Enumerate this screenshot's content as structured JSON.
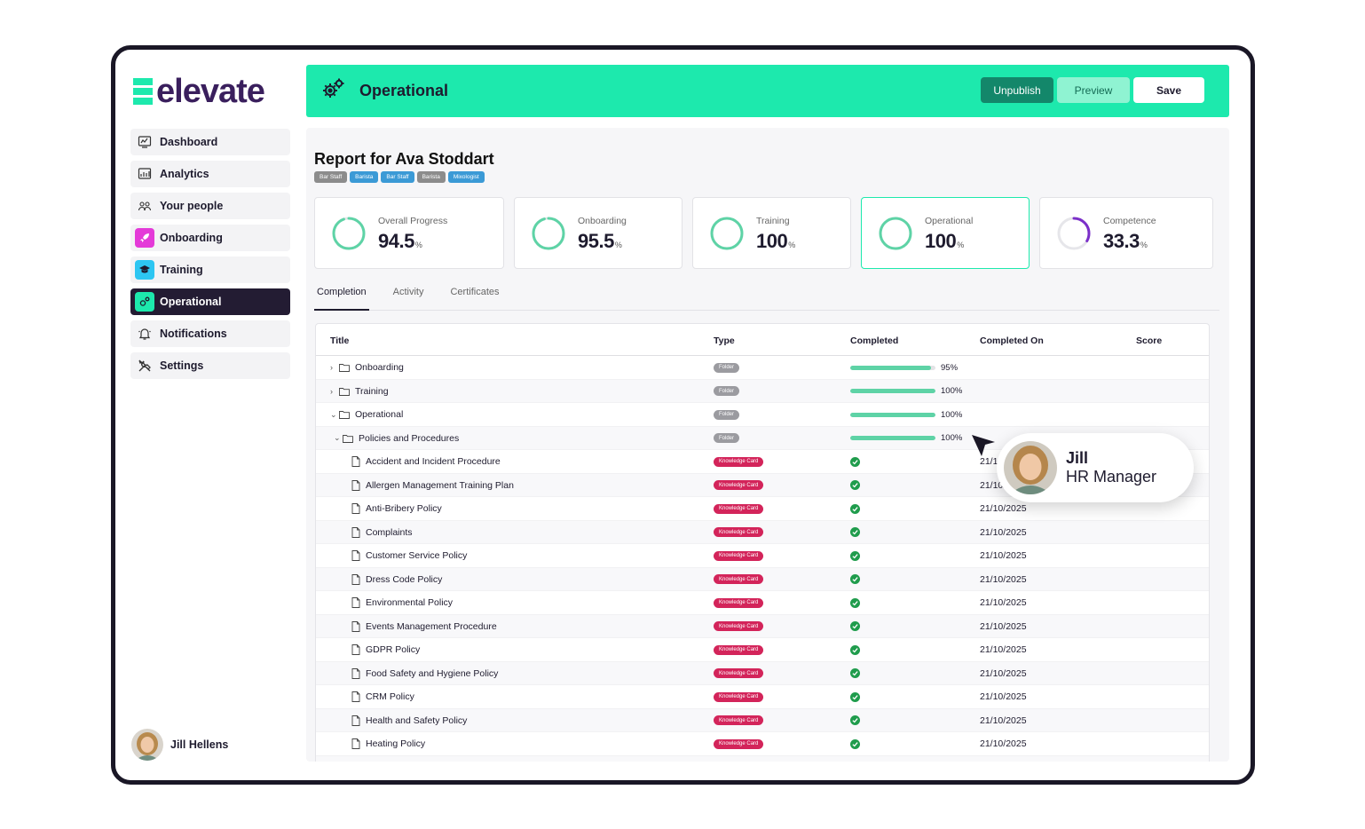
{
  "brand": {
    "logo_text": "elevate",
    "accent": "#1de9ad"
  },
  "sidebar": {
    "items": [
      {
        "label": "Dashboard",
        "icon": "dashboard-icon",
        "active": false
      },
      {
        "label": "Analytics",
        "icon": "analytics-icon",
        "active": false
      },
      {
        "label": "Your people",
        "icon": "people-icon",
        "active": false
      },
      {
        "label": "Onboarding",
        "icon": "rocket-icon",
        "active": false
      },
      {
        "label": "Training",
        "icon": "graduation-cap-icon",
        "active": false
      },
      {
        "label": "Operational",
        "icon": "gears-icon",
        "active": true
      },
      {
        "label": "Notifications",
        "icon": "bell-icon",
        "active": false
      },
      {
        "label": "Settings",
        "icon": "tools-icon",
        "active": false
      }
    ],
    "user_name": "Jill Hellens"
  },
  "header": {
    "title": "Operational",
    "unpublish_label": "Unpublish",
    "preview_label": "Preview",
    "save_label": "Save"
  },
  "report": {
    "title": "Report for Ava Stoddart",
    "tags": [
      {
        "label": "Bar Staff",
        "color": "#8c8c8c"
      },
      {
        "label": "Barista",
        "color": "#3b9ad6"
      },
      {
        "label": "Bar Staff",
        "color": "#3b9ad6"
      },
      {
        "label": "Barista",
        "color": "#8c8c8c"
      },
      {
        "label": "Mixologist",
        "color": "#3b9ad6"
      }
    ]
  },
  "stats": [
    {
      "label": "Overall Progress",
      "value": "94.5",
      "unit": "%",
      "fraction": 0.945,
      "color": "#5ed3a6",
      "highlight": false
    },
    {
      "label": "Onboarding",
      "value": "95.5",
      "unit": "%",
      "fraction": 0.955,
      "color": "#5ed3a6",
      "highlight": false
    },
    {
      "label": "Training",
      "value": "100",
      "unit": "%",
      "fraction": 1.0,
      "color": "#5ed3a6",
      "highlight": false
    },
    {
      "label": "Operational",
      "value": "100",
      "unit": "%",
      "fraction": 1.0,
      "color": "#5ed3a6",
      "highlight": true
    },
    {
      "label": "Competence",
      "value": "33.3",
      "unit": "%",
      "fraction": 0.333,
      "color": "#7b2fc9",
      "highlight": false
    }
  ],
  "tabs": [
    {
      "label": "Completion",
      "active": true
    },
    {
      "label": "Activity",
      "active": false
    },
    {
      "label": "Certificates",
      "active": false
    }
  ],
  "table": {
    "headers": {
      "title": "Title",
      "type": "Type",
      "completed": "Completed",
      "completed_on": "Completed On",
      "score": "Score"
    },
    "rows": [
      {
        "title": "Onboarding",
        "kind": "folder",
        "level": 0,
        "chevron": "right",
        "type": "Folder",
        "progress": 95,
        "pct": "95%",
        "date": ""
      },
      {
        "title": "Training",
        "kind": "folder",
        "level": 0,
        "chevron": "right",
        "type": "Folder",
        "progress": 100,
        "pct": "100%",
        "date": ""
      },
      {
        "title": "Operational",
        "kind": "folder",
        "level": 0,
        "chevron": "down",
        "type": "Folder",
        "progress": 100,
        "pct": "100%",
        "date": ""
      },
      {
        "title": "Policies and Procedures",
        "kind": "folder",
        "level": 1,
        "chevron": "down",
        "type": "Folder",
        "progress": 100,
        "pct": "100%",
        "date": ""
      },
      {
        "title": "Accident and Incident Procedure",
        "kind": "doc",
        "level": 2,
        "type": "Knowledge Card",
        "date": "21/10/2025"
      },
      {
        "title": "Allergen Management Training Plan",
        "kind": "doc",
        "level": 2,
        "type": "Knowledge Card",
        "date": "21/10/2025"
      },
      {
        "title": "Anti-Bribery Policy",
        "kind": "doc",
        "level": 2,
        "type": "Knowledge Card",
        "date": "21/10/2025"
      },
      {
        "title": "Complaints",
        "kind": "doc",
        "level": 2,
        "type": "Knowledge Card",
        "date": "21/10/2025"
      },
      {
        "title": "Customer Service Policy",
        "kind": "doc",
        "level": 2,
        "type": "Knowledge Card",
        "date": "21/10/2025"
      },
      {
        "title": "Dress Code Policy",
        "kind": "doc",
        "level": 2,
        "type": "Knowledge Card",
        "date": "21/10/2025"
      },
      {
        "title": "Environmental Policy",
        "kind": "doc",
        "level": 2,
        "type": "Knowledge Card",
        "date": "21/10/2025"
      },
      {
        "title": "Events Management Procedure",
        "kind": "doc",
        "level": 2,
        "type": "Knowledge Card",
        "date": "21/10/2025"
      },
      {
        "title": "GDPR Policy",
        "kind": "doc",
        "level": 2,
        "type": "Knowledge Card",
        "date": "21/10/2025"
      },
      {
        "title": "Food Safety and Hygiene Policy",
        "kind": "doc",
        "level": 2,
        "type": "Knowledge Card",
        "date": "21/10/2025"
      },
      {
        "title": "CRM Policy",
        "kind": "doc",
        "level": 2,
        "type": "Knowledge Card",
        "date": "21/10/2025"
      },
      {
        "title": "Health and Safety Policy",
        "kind": "doc",
        "level": 2,
        "type": "Knowledge Card",
        "date": "21/10/2025"
      },
      {
        "title": "Heating Policy",
        "kind": "doc",
        "level": 2,
        "type": "Knowledge Card",
        "date": "21/10/2025"
      },
      {
        "title": "",
        "kind": "doc",
        "level": 2,
        "type": "Knowledge Card",
        "date": "21/10/2025"
      }
    ]
  },
  "overlay_card": {
    "name": "Jill",
    "role": "HR Manager"
  }
}
